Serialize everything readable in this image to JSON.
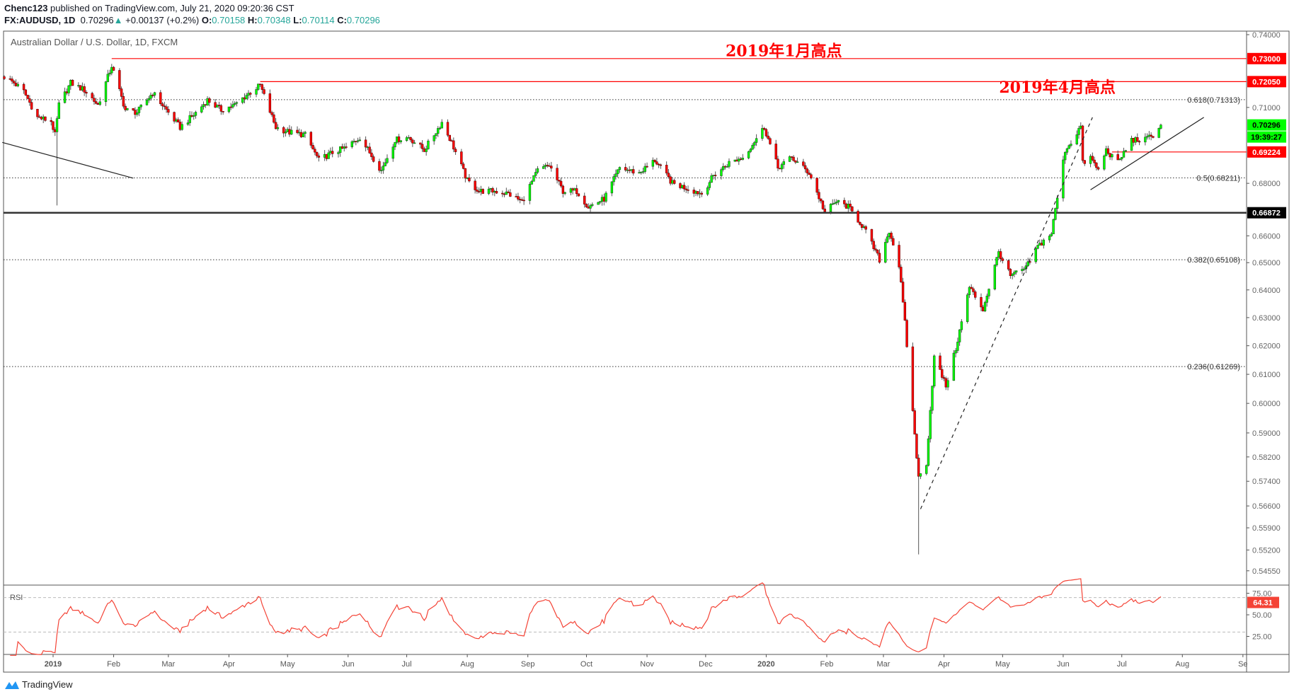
{
  "header": {
    "author": "Chenc123",
    "published": " published on TradingView.com, July 21, 2020 09:20:36 CST",
    "symbol": "FX:AUDUSD, 1D",
    "last": "0.70296",
    "arrow": "▲",
    "change": "+0.00137 (+0.2%)",
    "o_label": "O:",
    "o": "0.70158",
    "h_label": "H:",
    "h": "0.70348",
    "l_label": "L:",
    "l": "0.70114",
    "c_label": "C:",
    "c": "0.70296"
  },
  "chart_title": "Australian Dollar / U.S. Dollar, 1D, FXCM",
  "footer": {
    "brand": "TradingView"
  },
  "colors": {
    "up": "#00ff00",
    "down": "#ff0000",
    "rsi": "#f44336",
    "level_red": "#ff0000",
    "teal": "#26a69a"
  },
  "chart_data": {
    "type": "candlestick",
    "symbol": "AUDUSD",
    "scale": "log",
    "ylim": [
      0.543,
      0.741
    ],
    "approx_close_anchors": [
      [
        "2018-12-07",
        0.7225
      ],
      [
        "2018-12-12",
        0.72
      ],
      [
        "2018-12-17",
        0.7165
      ],
      [
        "2018-12-24",
        0.706
      ],
      [
        "2018-12-31",
        0.7045
      ],
      [
        "2019-01-02",
        0.699
      ],
      [
        "2019-01-04",
        0.711
      ],
      [
        "2019-01-10",
        0.72
      ],
      [
        "2019-01-17",
        0.717
      ],
      [
        "2019-01-24",
        0.711
      ],
      [
        "2019-01-31",
        0.727
      ],
      [
        "2019-02-07",
        0.709
      ],
      [
        "2019-02-13",
        0.708
      ],
      [
        "2019-02-21",
        0.716
      ],
      [
        "2019-03-01",
        0.708
      ],
      [
        "2019-03-07",
        0.702
      ],
      [
        "2019-03-14",
        0.707
      ],
      [
        "2019-03-21",
        0.713
      ],
      [
        "2019-03-28",
        0.709
      ],
      [
        "2019-04-04",
        0.711
      ],
      [
        "2019-04-10",
        0.715
      ],
      [
        "2019-04-17",
        0.719
      ],
      [
        "2019-04-25",
        0.702
      ],
      [
        "2019-05-02",
        0.7
      ],
      [
        "2019-05-10",
        0.699
      ],
      [
        "2019-05-17",
        0.689
      ],
      [
        "2019-05-24",
        0.692
      ],
      [
        "2019-05-31",
        0.694
      ],
      [
        "2019-06-07",
        0.698
      ],
      [
        "2019-06-18",
        0.685
      ],
      [
        "2019-06-25",
        0.697
      ],
      [
        "2019-07-02",
        0.698
      ],
      [
        "2019-07-10",
        0.693
      ],
      [
        "2019-07-19",
        0.704
      ],
      [
        "2019-07-24",
        0.696
      ],
      [
        "2019-08-01",
        0.681
      ],
      [
        "2019-08-07",
        0.677
      ],
      [
        "2019-08-15",
        0.677
      ],
      [
        "2019-08-22",
        0.676
      ],
      [
        "2019-08-29",
        0.673
      ],
      [
        "2019-09-06",
        0.685
      ],
      [
        "2019-09-12",
        0.687
      ],
      [
        "2019-09-19",
        0.677
      ],
      [
        "2019-09-26",
        0.677
      ],
      [
        "2019-10-02",
        0.671
      ],
      [
        "2019-10-10",
        0.674
      ],
      [
        "2019-10-18",
        0.686
      ],
      [
        "2019-10-28",
        0.684
      ],
      [
        "2019-11-05",
        0.689
      ],
      [
        "2019-11-14",
        0.68
      ],
      [
        "2019-11-22",
        0.678
      ],
      [
        "2019-11-29",
        0.676
      ],
      [
        "2019-12-05",
        0.683
      ],
      [
        "2019-12-13",
        0.688
      ],
      [
        "2019-12-20",
        0.69
      ],
      [
        "2019-12-31",
        0.702
      ],
      [
        "2020-01-07",
        0.686
      ],
      [
        "2020-01-14",
        0.69
      ],
      [
        "2020-01-23",
        0.684
      ],
      [
        "2020-01-31",
        0.669
      ],
      [
        "2020-02-06",
        0.673
      ],
      [
        "2020-02-12",
        0.671
      ],
      [
        "2020-02-20",
        0.663
      ],
      [
        "2020-02-28",
        0.651
      ],
      [
        "2020-03-04",
        0.662
      ],
      [
        "2020-03-09",
        0.649
      ],
      [
        "2020-03-12",
        0.628
      ],
      [
        "2020-03-19",
        0.575
      ],
      [
        "2020-03-23",
        0.58
      ],
      [
        "2020-03-27",
        0.616
      ],
      [
        "2020-04-02",
        0.606
      ],
      [
        "2020-04-07",
        0.619
      ],
      [
        "2020-04-14",
        0.641
      ],
      [
        "2020-04-21",
        0.633
      ],
      [
        "2020-04-29",
        0.654
      ],
      [
        "2020-05-05",
        0.645
      ],
      [
        "2020-05-13",
        0.648
      ],
      [
        "2020-05-19",
        0.656
      ],
      [
        "2020-05-26",
        0.661
      ],
      [
        "2020-06-02",
        0.693
      ],
      [
        "2020-06-05",
        0.696
      ],
      [
        "2020-06-10",
        0.7025
      ],
      [
        "2020-06-11",
        0.6878
      ],
      [
        "2020-06-15",
        0.69
      ],
      [
        "2020-06-19",
        0.685
      ],
      [
        "2020-06-23",
        0.693
      ],
      [
        "2020-06-29",
        0.688
      ],
      [
        "2020-07-06",
        0.697
      ],
      [
        "2020-07-13",
        0.697
      ],
      [
        "2020-07-17",
        0.699
      ],
      [
        "2020-07-21",
        0.70296
      ]
    ],
    "wick_lows": [
      [
        "2019-01-03",
        0.6715
      ],
      [
        "2020-03-19",
        0.5506
      ]
    ],
    "last_candle": {
      "date": "2020-07-21",
      "open": 0.70158,
      "high": 0.70348,
      "low": 0.70114,
      "close": 0.70296
    },
    "price_ticks": [
      "0.74000",
      "0.71000",
      "0.68000",
      "0.66000",
      "0.65000",
      "0.64000",
      "0.63000",
      "0.62000",
      "0.61000",
      "0.60000",
      "0.59000",
      "0.58200",
      "0.57400",
      "0.56600",
      "0.55900",
      "0.55200",
      "0.54550"
    ],
    "time_ticks": [
      {
        "label": "2019",
        "date": "2019-01-01",
        "bold": true
      },
      {
        "label": "Feb",
        "date": "2019-02-01"
      },
      {
        "label": "Mar",
        "date": "2019-03-01"
      },
      {
        "label": "Apr",
        "date": "2019-04-01"
      },
      {
        "label": "May",
        "date": "2019-05-01"
      },
      {
        "label": "Jun",
        "date": "2019-06-01"
      },
      {
        "label": "Jul",
        "date": "2019-07-01"
      },
      {
        "label": "Aug",
        "date": "2019-08-01"
      },
      {
        "label": "Sep",
        "date": "2019-09-01"
      },
      {
        "label": "Oct",
        "date": "2019-10-01"
      },
      {
        "label": "Nov",
        "date": "2019-11-01"
      },
      {
        "label": "Dec",
        "date": "2019-12-01"
      },
      {
        "label": "2020",
        "date": "2020-01-01",
        "bold": true
      },
      {
        "label": "Feb",
        "date": "2020-02-01"
      },
      {
        "label": "Mar",
        "date": "2020-03-01"
      },
      {
        "label": "Apr",
        "date": "2020-04-01"
      },
      {
        "label": "May",
        "date": "2020-05-01"
      },
      {
        "label": "Jun",
        "date": "2020-06-01"
      },
      {
        "label": "Jul",
        "date": "2020-07-01"
      },
      {
        "label": "Aug",
        "date": "2020-08-01"
      },
      {
        "label": "Se",
        "date": "2020-09-01"
      }
    ],
    "levels": [
      {
        "name": "jan-2019-high",
        "price": 0.73,
        "label": "0.73000",
        "from": "2019-01-31",
        "style": "red"
      },
      {
        "name": "apr-2019-high",
        "price": 0.7205,
        "label": "0.72050",
        "from": "2019-04-17",
        "style": "red"
      },
      {
        "name": "recent-support",
        "price": 0.69224,
        "label": "0.69224",
        "from": "2020-06-26",
        "style": "red"
      },
      {
        "name": "key-level",
        "price": 0.66872,
        "label": "0.66872",
        "style": "black"
      }
    ],
    "fib_levels": [
      {
        "price": 0.71313,
        "label": "0.618(0.71313)"
      },
      {
        "price": 0.68211,
        "label": "0.5(0.68211)"
      },
      {
        "price": 0.65108,
        "label": "0.382(0.65108)"
      },
      {
        "price": 0.61269,
        "label": "0.236(0.61269)"
      }
    ],
    "annotations": [
      {
        "text": "2019年1月高点",
        "price": 0.731,
        "date": "2020-01-10"
      },
      {
        "text": "2019年4月高点",
        "price": 0.716,
        "date": "2020-05-29"
      }
    ],
    "trendlines": [
      {
        "name": "downtrend-line",
        "from": [
          "2018-12-06",
          0.696
        ],
        "to": [
          "2019-02-11",
          0.682
        ],
        "style": "solid"
      },
      {
        "name": "dashed-uptrend-line",
        "from": [
          "2020-03-20",
          0.565
        ],
        "to": [
          "2020-06-16",
          0.706
        ],
        "style": "dashed"
      },
      {
        "name": "triangle-support-line",
        "from": [
          "2020-06-15",
          0.6775
        ],
        "to": [
          "2020-08-12",
          0.706
        ],
        "style": "solid"
      }
    ],
    "current_price": {
      "label": "0.70296",
      "countdown": "19:39:27"
    },
    "rsi": {
      "title": "RSI",
      "period": 14,
      "value_label": "64.31",
      "ticks": [
        "75.00",
        "50.00",
        "25.00"
      ],
      "bands": [
        70,
        30
      ]
    }
  }
}
